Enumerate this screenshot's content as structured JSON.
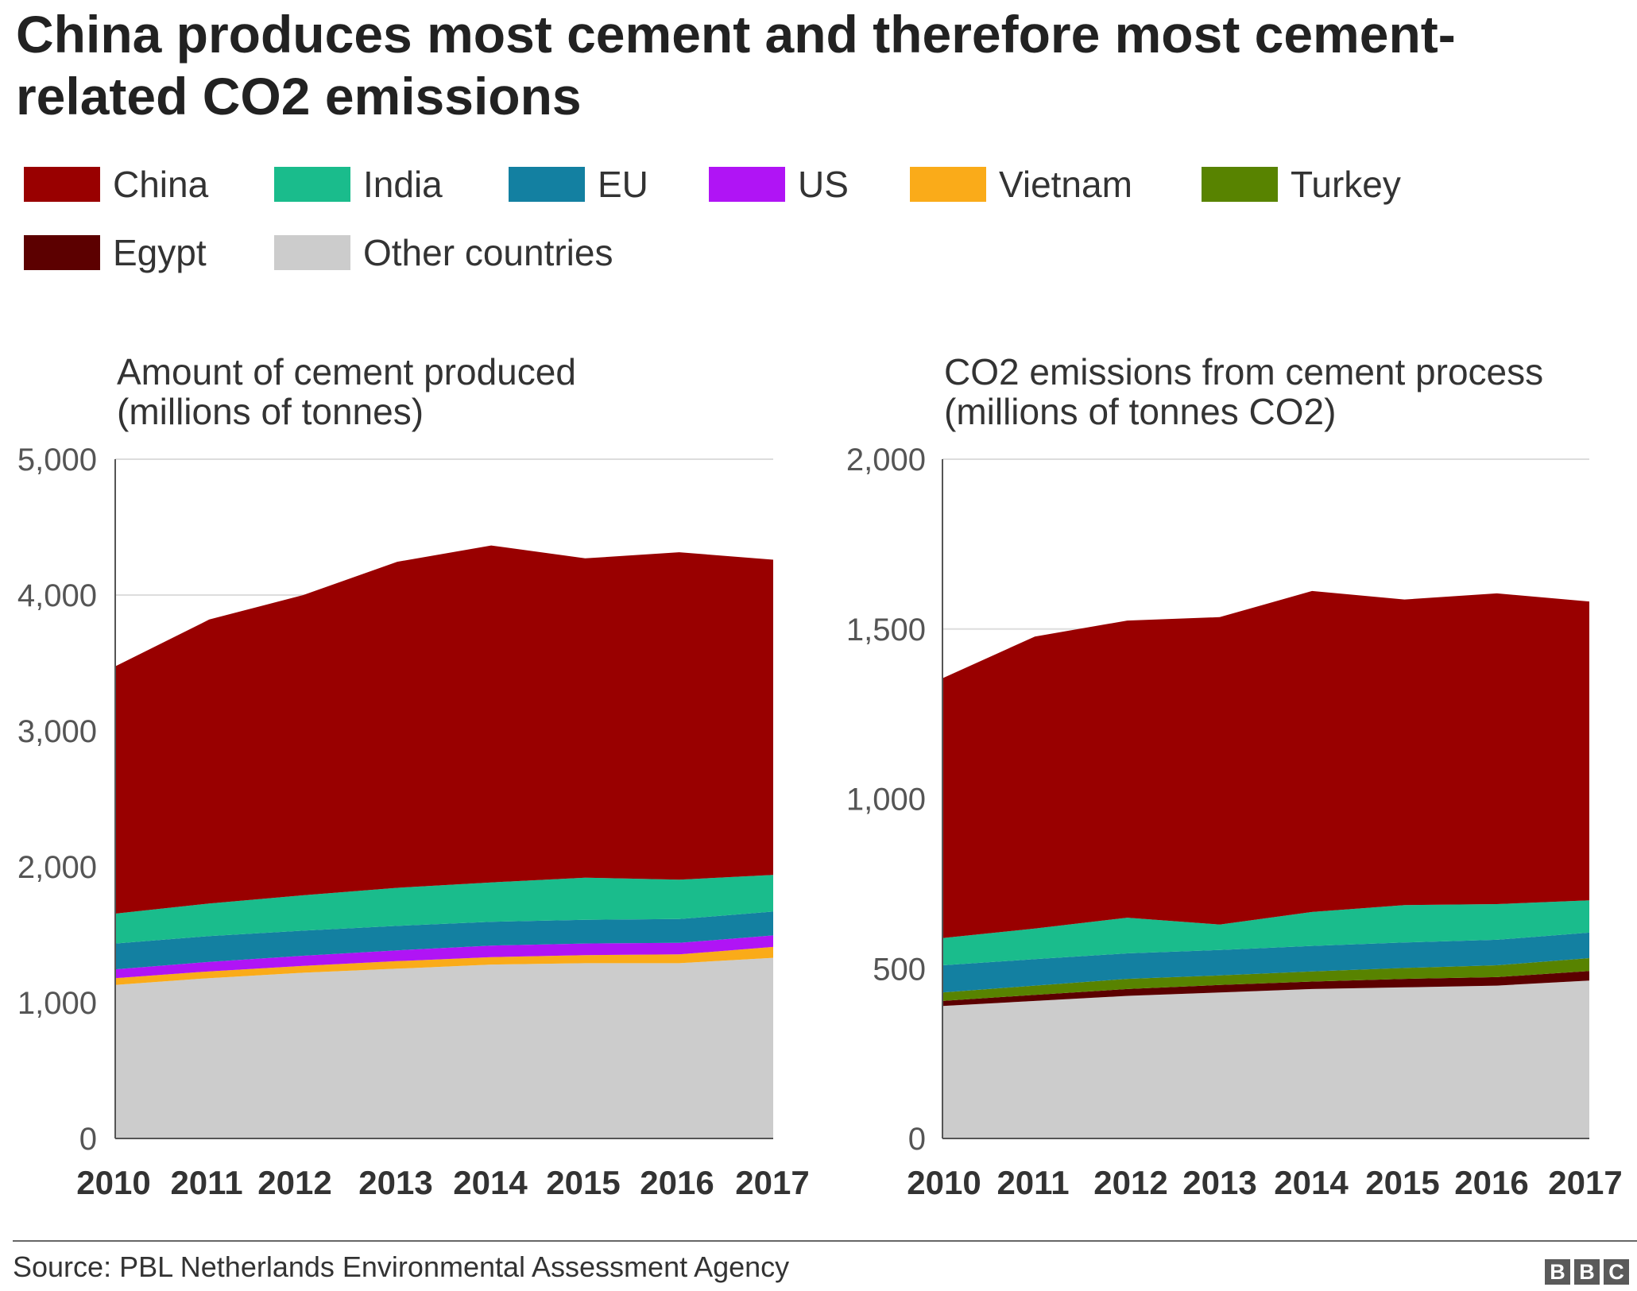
{
  "title": "China produces most cement and therefore most cement-related CO2 emissions",
  "legend": [
    {
      "label": "China",
      "color": "#990000"
    },
    {
      "label": "India",
      "color": "#1ABC8C"
    },
    {
      "label": "EU",
      "color": "#1380A1"
    },
    {
      "label": "US",
      "color": "#B014F5"
    },
    {
      "label": "Vietnam",
      "color": "#FAAB19"
    },
    {
      "label": "Turkey",
      "color": "#588300"
    },
    {
      "label": "Egypt",
      "color": "#5C0000"
    },
    {
      "label": "Other countries",
      "color": "#CCCCCC"
    }
  ],
  "chart_data": [
    {
      "type": "area",
      "stacked": true,
      "title": "Amount of cement produced (millions of tonnes)",
      "title_lines": [
        "Amount of cement produced",
        "(millions of tonnes)"
      ],
      "x": [
        "2010",
        "2011",
        "2012",
        "2013",
        "2014",
        "2015",
        "2016",
        "2017"
      ],
      "ylim": [
        0,
        5000
      ],
      "yticks": [
        0,
        1000,
        2000,
        3000,
        4000,
        5000
      ],
      "ytick_labels": [
        "0",
        "1,000",
        "2,000",
        "3,000",
        "4,000",
        "5,000"
      ],
      "grid": true,
      "series": [
        {
          "name": "Other countries",
          "values": [
            1130,
            1180,
            1220,
            1250,
            1280,
            1290,
            1290,
            1330
          ]
        },
        {
          "name": "Egypt",
          "values": [
            0,
            0,
            0,
            0,
            0,
            0,
            0,
            0
          ]
        },
        {
          "name": "Turkey",
          "values": [
            0,
            0,
            0,
            0,
            0,
            0,
            0,
            0
          ]
        },
        {
          "name": "Vietnam",
          "values": [
            50,
            50,
            50,
            55,
            55,
            60,
            65,
            80
          ]
        },
        {
          "name": "US",
          "values": [
            65,
            70,
            75,
            80,
            85,
            85,
            85,
            85
          ]
        },
        {
          "name": "EU",
          "values": [
            190,
            190,
            185,
            180,
            175,
            175,
            175,
            175
          ]
        },
        {
          "name": "India",
          "values": [
            220,
            240,
            260,
            280,
            290,
            310,
            290,
            270
          ]
        },
        {
          "name": "China",
          "values": [
            1820,
            2090,
            2210,
            2400,
            2480,
            2350,
            2410,
            2320
          ]
        }
      ]
    },
    {
      "type": "area",
      "stacked": true,
      "title": "CO2 emissions from cement process (millions of tonnes CO2)",
      "title_lines": [
        "CO2 emissions from cement process",
        "(millions of tonnes CO2)"
      ],
      "x": [
        "2010",
        "2011",
        "2012",
        "2013",
        "2014",
        "2015",
        "2016",
        "2017"
      ],
      "ylim": [
        0,
        2000
      ],
      "yticks": [
        0,
        500,
        1000,
        1500,
        2000
      ],
      "ytick_labels": [
        "0",
        "500",
        "1,000",
        "1,500",
        "2,000"
      ],
      "grid": true,
      "series": [
        {
          "name": "Other countries",
          "values": [
            390,
            405,
            420,
            430,
            440,
            445,
            450,
            465
          ]
        },
        {
          "name": "Egypt",
          "values": [
            15,
            18,
            20,
            22,
            22,
            25,
            25,
            28
          ]
        },
        {
          "name": "Turkey",
          "values": [
            25,
            27,
            30,
            28,
            30,
            32,
            35,
            38
          ]
        },
        {
          "name": "Vietnam",
          "values": [
            0,
            0,
            0,
            0,
            0,
            0,
            0,
            0
          ]
        },
        {
          "name": "US",
          "values": [
            0,
            0,
            0,
            0,
            0,
            0,
            0,
            0
          ]
        },
        {
          "name": "EU",
          "values": [
            80,
            78,
            75,
            75,
            75,
            75,
            75,
            75
          ]
        },
        {
          "name": "India",
          "values": [
            80,
            90,
            105,
            75,
            100,
            110,
            105,
            95
          ]
        },
        {
          "name": "China",
          "values": [
            765,
            860,
            875,
            905,
            945,
            900,
            915,
            880
          ]
        }
      ]
    }
  ],
  "source": "Source: PBL Netherlands Environmental Assessment Agency",
  "logo": [
    "B",
    "B",
    "C"
  ]
}
